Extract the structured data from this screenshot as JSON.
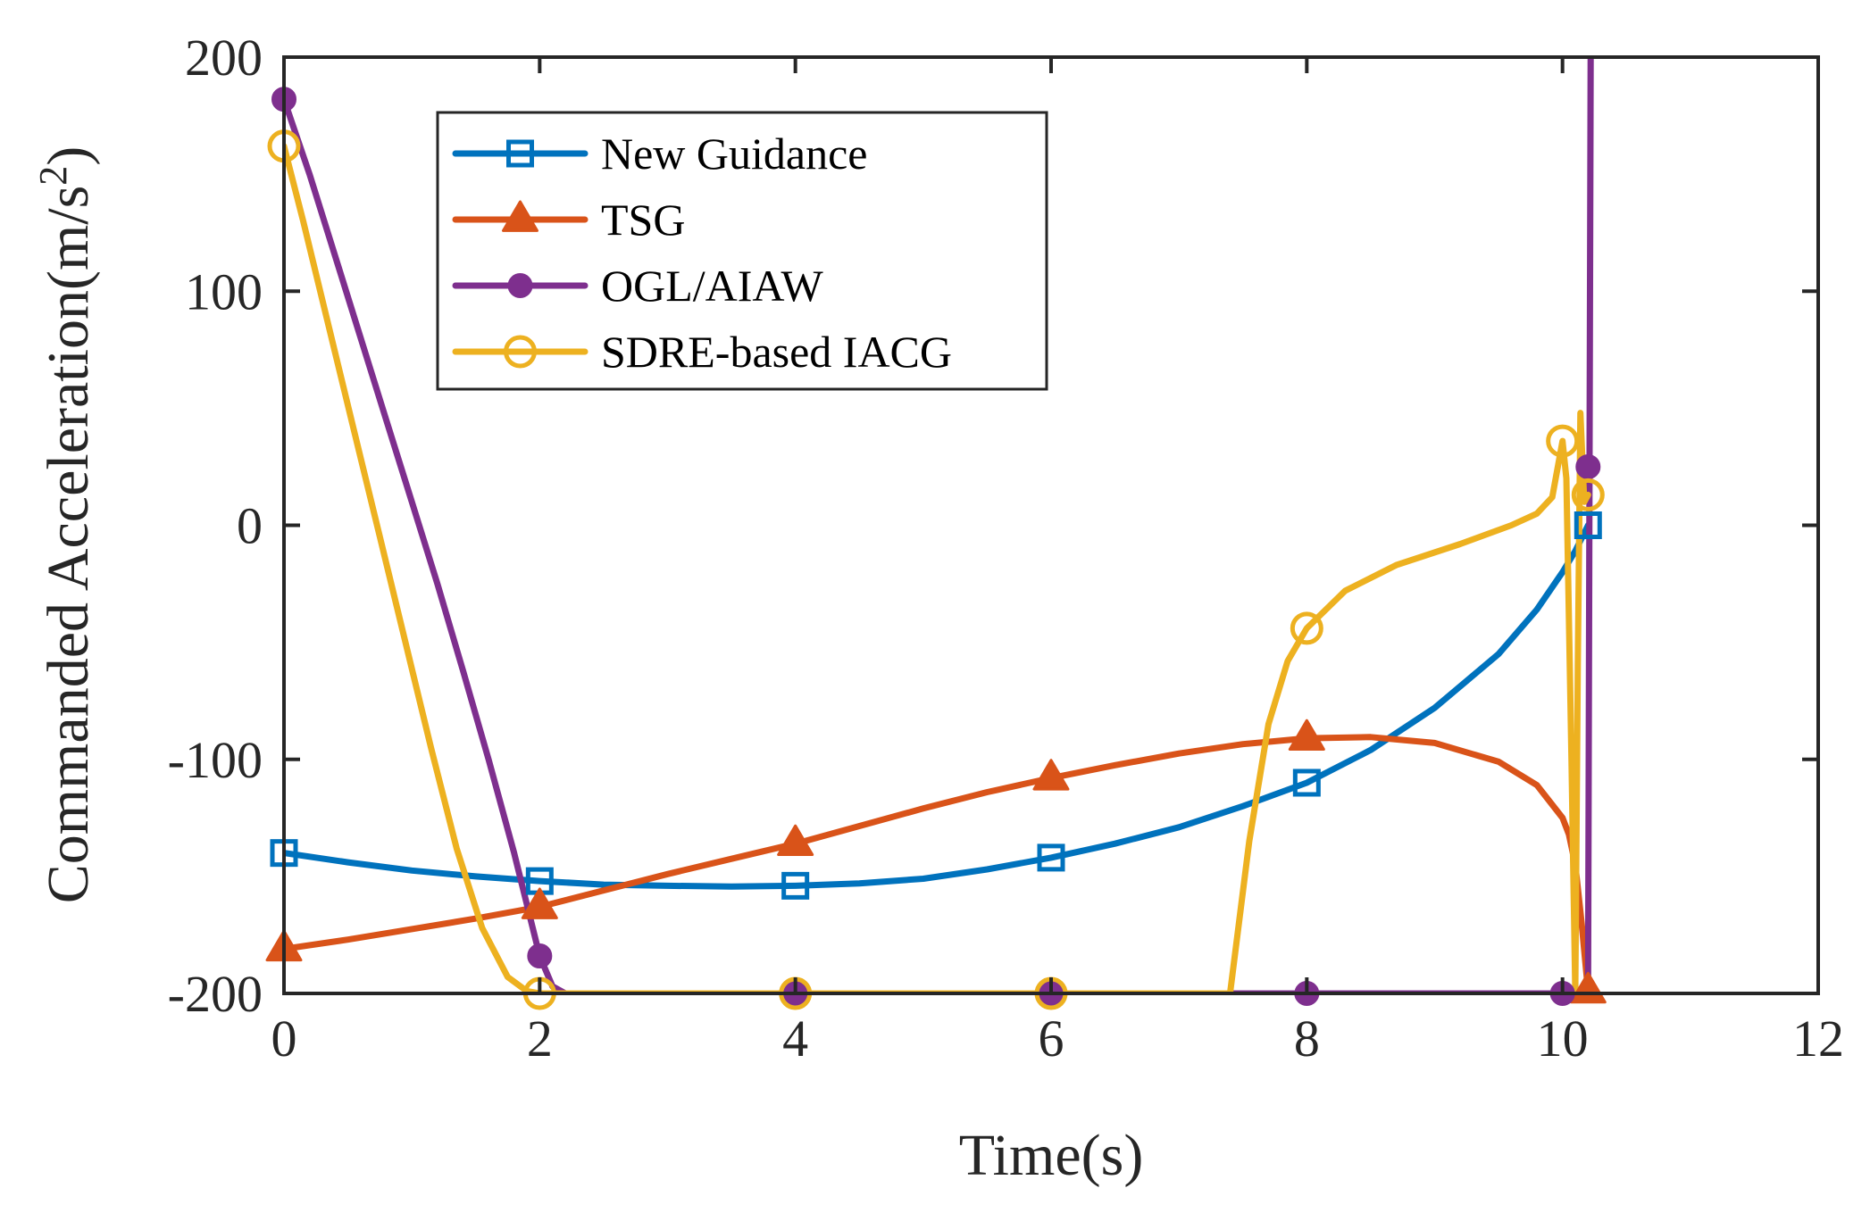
{
  "chart_data": {
    "type": "line",
    "title": "",
    "xlabel": "Time(s)",
    "ylabel": "Commanded Acceleration(m/s",
    "ylabel_superscript": "2",
    "ylabel_close": ")",
    "xlim": [
      0,
      12
    ],
    "ylim": [
      -200,
      200
    ],
    "xticks": [
      0,
      2,
      4,
      6,
      8,
      10,
      12
    ],
    "yticks": [
      -200,
      -100,
      0,
      100,
      200
    ],
    "xtick_labels": [
      "0",
      "2",
      "4",
      "6",
      "8",
      "10",
      "12"
    ],
    "ytick_labels": [
      "-200",
      "-100",
      "0",
      "100",
      "200"
    ],
    "grid": false,
    "legend_position": "top-left",
    "series": [
      {
        "name": "New Guidance",
        "color": "#0072BD",
        "marker": "square",
        "markers_at": [
          [
            0,
            -140
          ],
          [
            2,
            -152
          ],
          [
            4,
            -154
          ],
          [
            6,
            -142
          ],
          [
            8,
            -110
          ],
          [
            10.2,
            0
          ]
        ],
        "points": [
          [
            0,
            -140
          ],
          [
            0.5,
            -144
          ],
          [
            1,
            -147.5
          ],
          [
            1.5,
            -150
          ],
          [
            2,
            -152
          ],
          [
            2.5,
            -153.5
          ],
          [
            3,
            -154
          ],
          [
            3.5,
            -154.3
          ],
          [
            4,
            -154
          ],
          [
            4.5,
            -153
          ],
          [
            5,
            -151
          ],
          [
            5.5,
            -147
          ],
          [
            6,
            -142
          ],
          [
            6.5,
            -136
          ],
          [
            7,
            -129
          ],
          [
            7.5,
            -120
          ],
          [
            8,
            -110
          ],
          [
            8.5,
            -96
          ],
          [
            9,
            -78
          ],
          [
            9.5,
            -55
          ],
          [
            9.8,
            -36
          ],
          [
            10,
            -20
          ],
          [
            10.1,
            -11
          ],
          [
            10.2,
            0
          ]
        ]
      },
      {
        "name": "TSG",
        "color": "#D95319",
        "marker": "triangle",
        "markers_at": [
          [
            0,
            -181
          ],
          [
            2,
            -163
          ],
          [
            4,
            -136
          ],
          [
            6,
            -108
          ],
          [
            8,
            -91
          ],
          [
            10.2,
            -199
          ]
        ],
        "points": [
          [
            0,
            -181
          ],
          [
            0.5,
            -177
          ],
          [
            1,
            -172.5
          ],
          [
            1.5,
            -168
          ],
          [
            2,
            -163
          ],
          [
            2.5,
            -156
          ],
          [
            3,
            -149
          ],
          [
            3.5,
            -142.5
          ],
          [
            4,
            -136
          ],
          [
            4.5,
            -128.5
          ],
          [
            5,
            -121
          ],
          [
            5.5,
            -114
          ],
          [
            6,
            -108
          ],
          [
            6.5,
            -102.5
          ],
          [
            7,
            -97.5
          ],
          [
            7.5,
            -93.5
          ],
          [
            8,
            -91
          ],
          [
            8.5,
            -90.5
          ],
          [
            9,
            -93
          ],
          [
            9.5,
            -101
          ],
          [
            9.8,
            -111
          ],
          [
            10,
            -125
          ],
          [
            10.05,
            -132
          ],
          [
            10.1,
            -145
          ],
          [
            10.15,
            -170
          ],
          [
            10.2,
            -199
          ]
        ]
      },
      {
        "name": "OGL/AIAW",
        "color": "#7E2F8E",
        "marker": "circle-filled",
        "markers_at": [
          [
            0,
            182
          ],
          [
            2,
            -184
          ],
          [
            4,
            -200
          ],
          [
            6,
            -200
          ],
          [
            8,
            -200
          ],
          [
            10,
            -200
          ],
          [
            10.2,
            25
          ]
        ],
        "points": [
          [
            0,
            182
          ],
          [
            0.2,
            150
          ],
          [
            0.4,
            115
          ],
          [
            0.6,
            80
          ],
          [
            0.8,
            45
          ],
          [
            1,
            10
          ],
          [
            1.2,
            -25
          ],
          [
            1.4,
            -62
          ],
          [
            1.6,
            -100
          ],
          [
            1.8,
            -140
          ],
          [
            2,
            -184
          ],
          [
            2.1,
            -197
          ],
          [
            2.2,
            -200
          ],
          [
            10.2,
            -200
          ],
          [
            10.22,
            200
          ]
        ]
      },
      {
        "name": "SDRE-based IACG",
        "color": "#EDB120",
        "marker": "circle-open",
        "markers_at": [
          [
            0,
            162
          ],
          [
            2,
            -200
          ],
          [
            4,
            -200
          ],
          [
            6,
            -200
          ],
          [
            8,
            -44
          ],
          [
            10,
            36
          ],
          [
            10.2,
            13
          ]
        ],
        "points": [
          [
            0,
            162
          ],
          [
            0.15,
            130
          ],
          [
            0.35,
            85
          ],
          [
            0.55,
            40
          ],
          [
            0.75,
            -5
          ],
          [
            0.95,
            -50
          ],
          [
            1.15,
            -95
          ],
          [
            1.35,
            -138
          ],
          [
            1.55,
            -172
          ],
          [
            1.75,
            -193
          ],
          [
            1.9,
            -199
          ],
          [
            2,
            -200
          ],
          [
            7.4,
            -200
          ],
          [
            7.55,
            -135
          ],
          [
            7.7,
            -85
          ],
          [
            7.85,
            -58
          ],
          [
            8,
            -44
          ],
          [
            8.3,
            -28
          ],
          [
            8.7,
            -17
          ],
          [
            9.2,
            -8
          ],
          [
            9.6,
            0
          ],
          [
            9.8,
            5
          ],
          [
            9.92,
            12
          ],
          [
            10,
            36
          ],
          [
            10.03,
            20
          ],
          [
            10.07,
            -100
          ],
          [
            10.1,
            -200
          ],
          [
            10.12,
            -60
          ],
          [
            10.14,
            48
          ],
          [
            10.17,
            10
          ],
          [
            10.2,
            13
          ]
        ]
      }
    ]
  }
}
